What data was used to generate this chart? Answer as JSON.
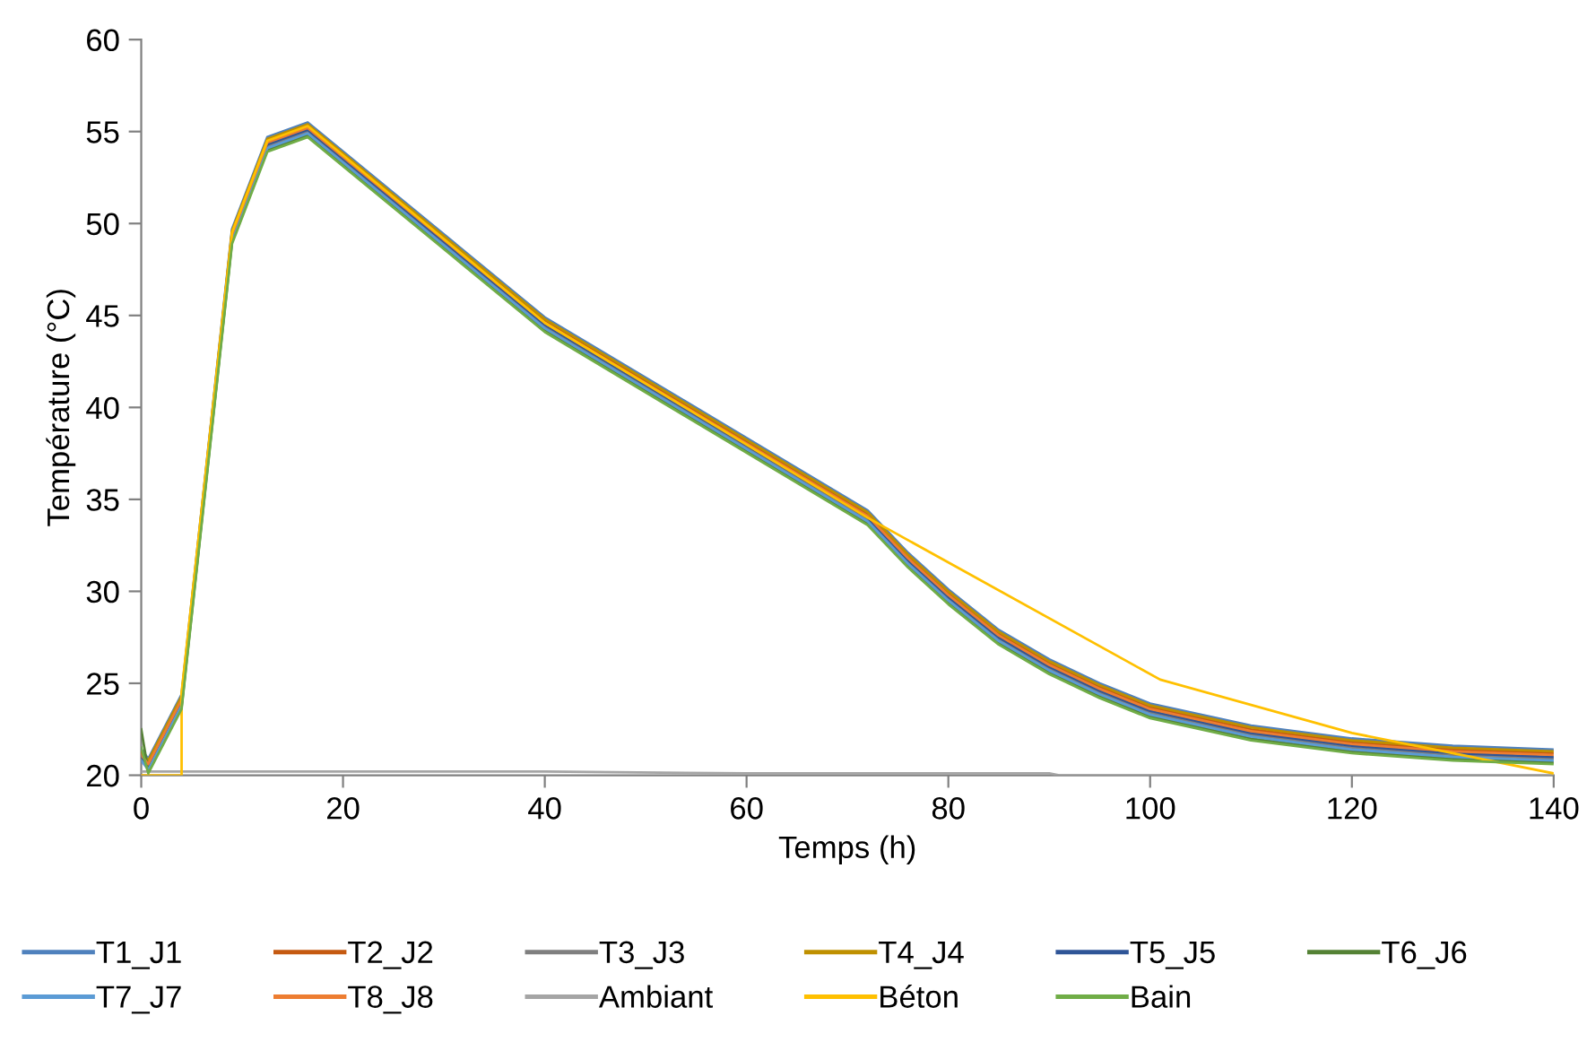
{
  "chart_data": {
    "type": "line",
    "xlabel": "Temps (h)",
    "ylabel": "Température (°C)",
    "xlim": [
      0,
      140
    ],
    "ylim": [
      20,
      60
    ],
    "xticks": [
      0,
      20,
      40,
      60,
      80,
      100,
      120,
      140
    ],
    "yticks": [
      20,
      25,
      30,
      35,
      40,
      45,
      50,
      55,
      60
    ],
    "grid": false,
    "legend": "bottom",
    "marker": "none",
    "line_style": "solid",
    "x": [
      0,
      0.7,
      4,
      9,
      12.5,
      16.5,
      40,
      72,
      76,
      80,
      85,
      90,
      95,
      100,
      110,
      120,
      130,
      140
    ],
    "series": [
      {
        "name": "T1_J1",
        "color": "#4f81bd",
        "values": [
          21.4,
          20.9,
          24.4,
          49.7,
          54.7,
          55.5,
          44.9,
          34.4,
          32.1,
          30.1,
          27.9,
          26.3,
          25.0,
          23.9,
          22.7,
          22.0,
          21.6,
          21.4
        ]
      },
      {
        "name": "T2_J2",
        "color": "#c55a11",
        "values": [
          21.2,
          20.7,
          24.2,
          49.5,
          54.5,
          55.3,
          44.7,
          34.2,
          31.9,
          29.9,
          27.7,
          26.1,
          24.8,
          23.7,
          22.5,
          21.8,
          21.4,
          21.2
        ]
      },
      {
        "name": "T3_J3",
        "color": "#7f7f7f",
        "values": [
          20.9,
          20.4,
          23.9,
          49.2,
          54.2,
          55.0,
          44.4,
          33.9,
          31.6,
          29.6,
          27.4,
          25.8,
          24.5,
          23.4,
          22.2,
          21.5,
          21.1,
          20.9
        ]
      },
      {
        "name": "T4_J4",
        "color": "#bf9000",
        "values": [
          21.3,
          20.8,
          24.3,
          49.6,
          54.6,
          55.4,
          44.8,
          34.3,
          32.0,
          30.0,
          27.8,
          26.2,
          24.9,
          23.8,
          22.6,
          21.9,
          21.5,
          21.3
        ]
      },
      {
        "name": "T5_J5",
        "color": "#2f5597",
        "values": [
          21.0,
          20.5,
          24.0,
          49.3,
          54.3,
          55.1,
          44.5,
          34.0,
          31.7,
          29.7,
          27.5,
          25.9,
          24.6,
          23.5,
          22.3,
          21.6,
          21.2,
          21.0
        ]
      },
      {
        "name": "T6_J6",
        "color": "#548235",
        "values": [
          22.5,
          20.2,
          23.7,
          49.0,
          54.0,
          54.8,
          44.2,
          33.7,
          31.4,
          29.4,
          27.2,
          25.6,
          24.3,
          23.2,
          22.0,
          21.3,
          20.9,
          20.7
        ]
      },
      {
        "name": "T7_J7",
        "color": "#5b9bd5",
        "values": [
          20.8,
          20.3,
          23.8,
          49.1,
          54.1,
          54.9,
          44.3,
          33.8,
          31.5,
          29.5,
          27.3,
          25.7,
          24.4,
          23.3,
          22.1,
          21.4,
          21.0,
          20.8
        ]
      },
      {
        "name": "T8_J8",
        "color": "#ed7d31",
        "values": [
          21.1,
          20.6,
          24.1,
          49.4,
          54.4,
          55.2,
          44.6,
          34.1,
          31.8,
          29.8,
          27.6,
          26.0,
          24.7,
          23.6,
          22.4,
          21.7,
          21.3,
          21.1
        ]
      },
      {
        "name": "Ambiant",
        "color": "#a5a5a5",
        "x": [
          0,
          20,
          40,
          60,
          72,
          90,
          91,
          100,
          120,
          140
        ],
        "values": [
          20.2,
          20.2,
          20.2,
          20.1,
          20.1,
          20.1,
          20.0,
          20.0,
          20.0,
          20.0
        ]
      },
      {
        "name": "Béton",
        "color": "#ffc000",
        "x": [
          0,
          4,
          4,
          9,
          12.5,
          16.5,
          40,
          72,
          101,
          120,
          140
        ],
        "values": [
          20.0,
          20.0,
          24.5,
          49.5,
          54.5,
          55.3,
          44.6,
          34.0,
          25.2,
          22.3,
          20.1
        ]
      },
      {
        "name": "Bain",
        "color": "#70ad47",
        "values": [
          21.5,
          20.1,
          23.6,
          48.9,
          53.9,
          54.7,
          44.1,
          33.6,
          31.3,
          29.3,
          27.1,
          25.5,
          24.2,
          23.1,
          21.9,
          21.2,
          20.8,
          20.6
        ]
      }
    ]
  }
}
